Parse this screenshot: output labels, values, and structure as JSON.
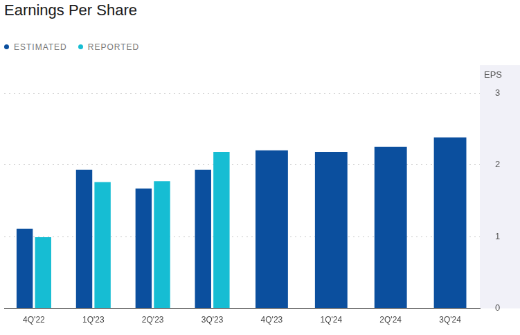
{
  "chart_data": {
    "type": "bar",
    "title": "Earnings Per Share",
    "categories": [
      "4Q'22",
      "1Q'23",
      "2Q'23",
      "3Q'23",
      "4Q'23",
      "1Q'24",
      "2Q'24",
      "3Q'24"
    ],
    "series": [
      {
        "name": "ESTIMATED",
        "color": "#0b4f9e",
        "values": [
          1.11,
          1.93,
          1.67,
          1.93,
          2.2,
          2.18,
          2.25,
          2.38
        ]
      },
      {
        "name": "REPORTED",
        "color": "#16bdd3",
        "values": [
          0.99,
          1.76,
          1.77,
          2.18,
          null,
          null,
          null,
          null
        ]
      }
    ],
    "y_label": "EPS",
    "ylim": [
      0,
      3
    ],
    "yticks": [
      0,
      1,
      2,
      3
    ],
    "grid": true,
    "legend": "top-left"
  }
}
